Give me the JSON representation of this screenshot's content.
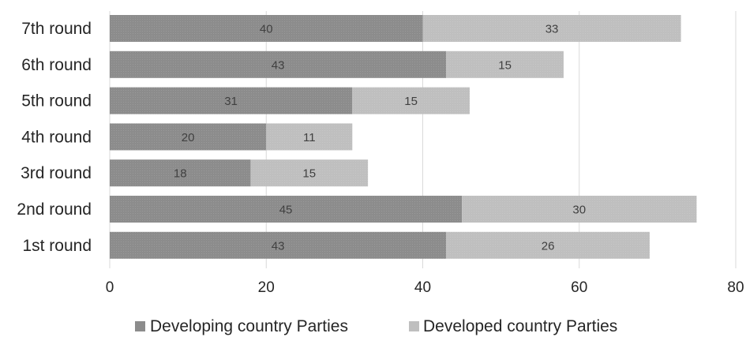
{
  "chart_data": {
    "type": "bar",
    "orientation": "horizontal",
    "stacked": true,
    "categories": [
      "7th round",
      "6th round",
      "5th round",
      "4th round",
      "3rd round",
      "2nd round",
      "1st round"
    ],
    "series": [
      {
        "name": "Developing country Parties",
        "color": "#8c8c8c",
        "values": [
          40,
          43,
          31,
          20,
          18,
          45,
          43
        ]
      },
      {
        "name": "Developed country Parties",
        "color": "#bfbfbf",
        "values": [
          33,
          15,
          15,
          11,
          15,
          30,
          26
        ]
      }
    ],
    "xlim": [
      0,
      80
    ],
    "xticks": [
      0,
      20,
      40,
      60,
      80
    ],
    "grid": true,
    "legend_position": "bottom",
    "data_labels": true
  }
}
